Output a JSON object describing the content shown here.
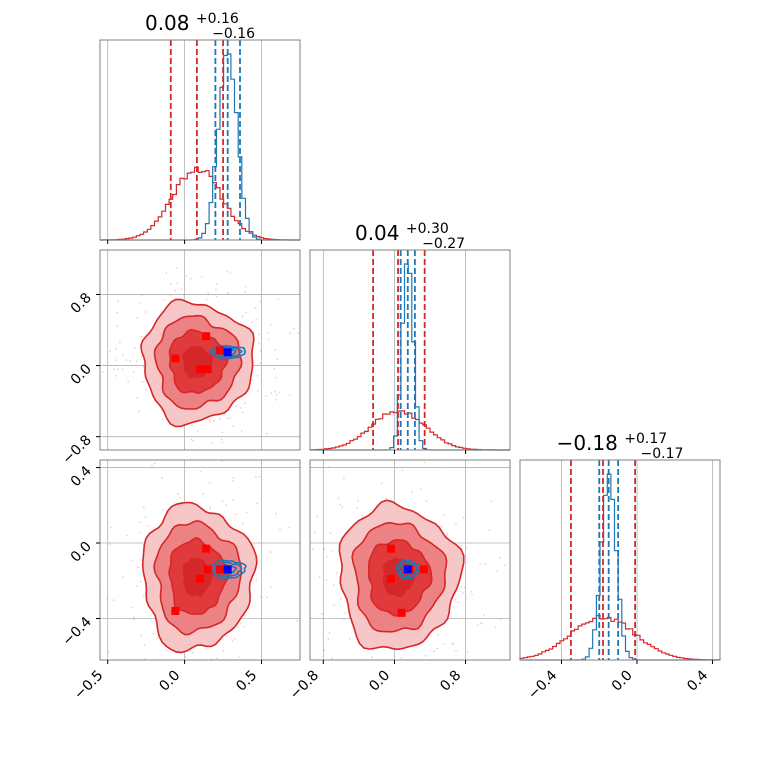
{
  "colors": {
    "prior": "#d62728",
    "posterior": "#1f77b4",
    "truth_prior": "#ff0000",
    "truth_post": "#0000ff",
    "fill_levels": [
      "#f7c6c7",
      "#ec8283",
      "#e03a3c",
      "#d62728"
    ],
    "scatter": "#f4a7b9"
  },
  "chart_data": {
    "type": "corner",
    "panels": [
      {
        "name": "param-1-marginal",
        "title_main": "0.08",
        "title_plus": "+0.16",
        "title_minus": "−0.16",
        "xlim": [
          -0.55,
          0.75
        ],
        "prior": {
          "mean": 0.08,
          "std": 0.16
        },
        "posterior": {
          "mean": 0.28,
          "std": 0.06
        },
        "prior_quantiles": [
          -0.09,
          0.08,
          0.25
        ],
        "posterior_quantiles": [
          0.2,
          0.28,
          0.36
        ]
      },
      {
        "name": "param-2-marginal",
        "title_main": "0.04",
        "title_plus": "+0.30",
        "title_minus": "−0.27",
        "xlim": [
          -0.95,
          1.3
        ],
        "prior": {
          "mean": 0.04,
          "std": 0.3
        },
        "posterior": {
          "mean": 0.15,
          "std": 0.06
        },
        "prior_quantiles": [
          -0.24,
          0.04,
          0.34
        ],
        "posterior_quantiles": [
          0.07,
          0.15,
          0.23
        ]
      },
      {
        "name": "param-3-marginal",
        "title_main": "−0.18",
        "title_plus": "+0.17",
        "title_minus": "−0.17",
        "xlim": [
          -0.62,
          0.44
        ],
        "prior": {
          "mean": -0.18,
          "std": 0.17
        },
        "posterior": {
          "mean": -0.15,
          "std": 0.04
        },
        "prior_quantiles": [
          -0.35,
          -0.18,
          -0.01
        ],
        "posterior_quantiles": [
          -0.2,
          -0.15,
          -0.1
        ]
      }
    ],
    "axes": [
      {
        "lim": [
          -0.55,
          0.75
        ],
        "ticks": [
          -0.5,
          0.0,
          0.5
        ],
        "tick_labels": [
          "−0.5",
          "0.0",
          "0.5"
        ]
      },
      {
        "lim": [
          -0.95,
          1.3
        ],
        "ticks": [
          -0.8,
          0.0,
          0.8
        ],
        "tick_labels": [
          "−0.8",
          "0.0",
          "0.8"
        ]
      },
      {
        "lim": [
          -0.62,
          0.44
        ],
        "ticks": [
          -0.4,
          0.0,
          0.4
        ],
        "tick_labels": [
          "−0.4",
          "0.0",
          "0.4"
        ]
      }
    ],
    "prior_contour_radii": [
      [
        0.6,
        0.6
      ],
      [
        1.15,
        1.15
      ],
      [
        1.7,
        1.7
      ],
      [
        2.25,
        2.25
      ]
    ],
    "posterior_contour_radii": [
      [
        0.7,
        0.55
      ],
      [
        1.2,
        0.9
      ],
      [
        1.6,
        1.2
      ]
    ],
    "pairs": [
      {
        "x_param": 0,
        "y_param": 1,
        "prior_center": [
          0.08,
          0.04
        ],
        "prior_sigma": [
          0.16,
          0.3
        ],
        "posterior_center": [
          0.28,
          0.15
        ],
        "posterior_sigma": [
          0.07,
          0.06
        ],
        "truth_post": [
          0.28,
          0.15
        ],
        "truth_prior": [
          [
            0.14,
            0.33
          ],
          [
            -0.06,
            0.08
          ],
          [
            0.1,
            -0.04
          ],
          [
            0.15,
            -0.04
          ],
          [
            0.23,
            0.17
          ]
        ]
      },
      {
        "x_param": 0,
        "y_param": 2,
        "prior_center": [
          0.08,
          -0.18
        ],
        "prior_sigma": [
          0.16,
          0.17
        ],
        "posterior_center": [
          0.28,
          -0.14
        ],
        "posterior_sigma": [
          0.07,
          0.04
        ],
        "truth_post": [
          0.28,
          -0.14
        ],
        "truth_prior": [
          [
            0.14,
            -0.03
          ],
          [
            0.15,
            -0.14
          ],
          [
            0.1,
            -0.19
          ],
          [
            -0.06,
            -0.36
          ],
          [
            0.23,
            -0.14
          ]
        ]
      },
      {
        "x_param": 1,
        "y_param": 2,
        "prior_center": [
          0.04,
          -0.18
        ],
        "prior_sigma": [
          0.3,
          0.17
        ],
        "posterior_center": [
          0.15,
          -0.14
        ],
        "posterior_sigma": [
          0.08,
          0.04
        ],
        "truth_post": [
          0.15,
          -0.14
        ],
        "truth_prior": [
          [
            -0.04,
            -0.03
          ],
          [
            0.33,
            -0.14
          ],
          [
            -0.04,
            -0.19
          ],
          [
            0.08,
            -0.37
          ],
          [
            0.17,
            -0.14
          ]
        ]
      }
    ]
  }
}
